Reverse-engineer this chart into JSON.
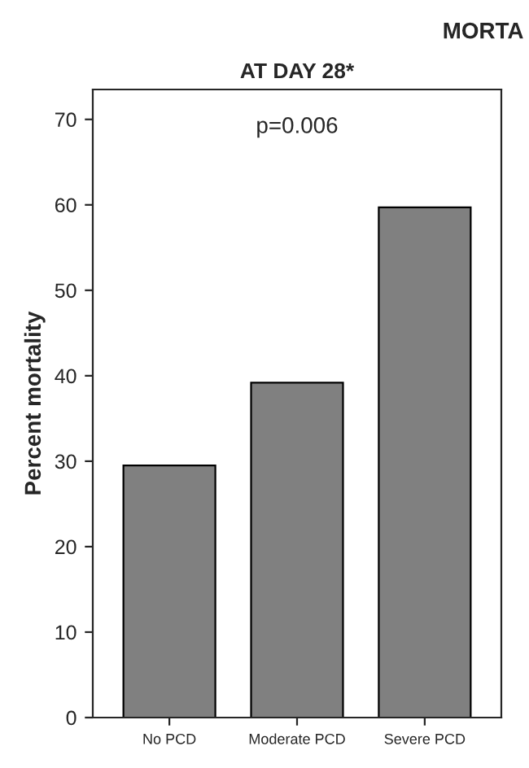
{
  "chart_data": {
    "type": "bar",
    "title": "MORTA",
    "subtitle": "AT DAY 28*",
    "ylabel": "Percent mortality",
    "categories": [
      "No PCD",
      "Moderate PCD",
      "Severe PCD"
    ],
    "values": [
      29.5,
      39.2,
      59.7
    ],
    "color": "#808080",
    "ylim": [
      0,
      73.5
    ],
    "yticks": [
      0,
      10,
      20,
      30,
      40,
      50,
      60,
      70
    ],
    "grid": false,
    "annotations": [
      "p=0.006"
    ]
  }
}
